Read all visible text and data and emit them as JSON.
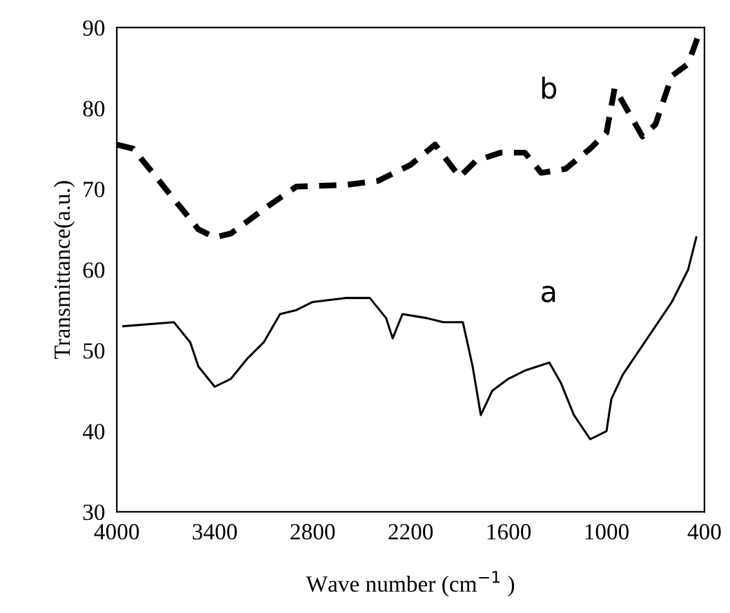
{
  "chart_data": {
    "type": "line",
    "xlabel": "Wave number (cm$^{−1}$ )",
    "ylabel": "Transmittance(a.u.)",
    "xlim": [
      4000,
      400
    ],
    "ylim": [
      30,
      90
    ],
    "xticks": [
      4000,
      3400,
      2800,
      2200,
      1600,
      1000,
      400
    ],
    "yticks": [
      30,
      40,
      50,
      60,
      70,
      80,
      90
    ],
    "grid": false,
    "series": [
      {
        "name": "a",
        "color": "#000000",
        "line_style": "solid",
        "x": [
          3960,
          3650,
          3550,
          3500,
          3400,
          3300,
          3200,
          3100,
          3000,
          2900,
          2800,
          2600,
          2450,
          2350,
          2310,
          2250,
          2100,
          2000,
          1880,
          1820,
          1770,
          1700,
          1600,
          1500,
          1350,
          1280,
          1200,
          1100,
          1000,
          970,
          900,
          800,
          700,
          600,
          500,
          450
        ],
        "values": [
          53,
          53.5,
          51,
          48,
          45.5,
          46.5,
          49,
          51,
          54.5,
          55,
          56,
          56.5,
          56.5,
          54,
          51.5,
          54.5,
          54,
          53.5,
          53.5,
          48,
          42,
          45,
          46.5,
          47.5,
          48.5,
          46,
          42,
          39,
          40,
          44,
          47,
          50,
          53,
          56,
          60,
          64
        ]
      },
      {
        "name": "b",
        "color": "#000000",
        "line_style": "dashed",
        "x": [
          4000,
          3900,
          3700,
          3500,
          3400,
          3300,
          3100,
          2900,
          2600,
          2400,
          2200,
          2050,
          1900,
          1800,
          1650,
          1500,
          1400,
          1250,
          1100,
          1000,
          950,
          850,
          780,
          700,
          600,
          500,
          420
        ],
        "values": [
          75.5,
          75,
          70,
          65,
          64,
          64.5,
          67.5,
          70.3,
          70.5,
          71,
          73,
          75.5,
          71.5,
          73.5,
          74.5,
          74.5,
          72,
          72.5,
          75,
          77,
          82.5,
          79,
          76.5,
          78,
          84,
          85.5,
          90
        ]
      }
    ]
  }
}
